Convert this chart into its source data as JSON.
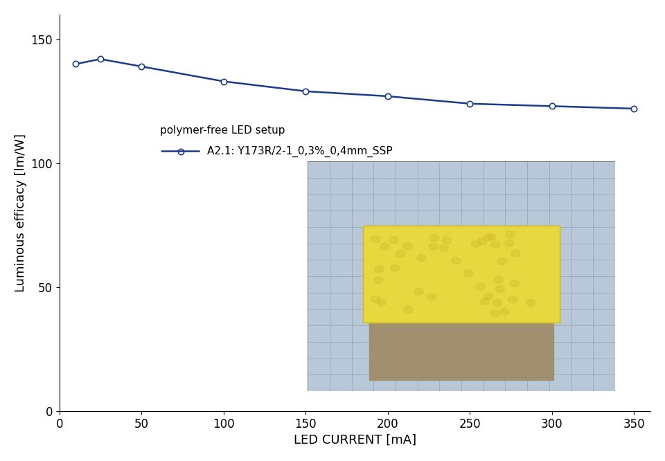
{
  "x": [
    10,
    25,
    50,
    100,
    150,
    200,
    250,
    300,
    350
  ],
  "y": [
    140,
    142,
    139,
    133,
    129,
    127,
    124,
    123,
    122
  ],
  "line_color": "#1a3a8c",
  "marker": "o",
  "marker_facecolor": "white",
  "marker_edgecolor": "#1a3a8c",
  "marker_size": 6,
  "line_width": 1.8,
  "xlabel": "LED CURRENT [mA]",
  "ylabel": "Luminous efficacy [lm/W]",
  "xlim": [
    0,
    360
  ],
  "ylim": [
    0,
    160
  ],
  "xticks": [
    0,
    50,
    100,
    150,
    200,
    250,
    300,
    350
  ],
  "yticks": [
    0,
    50,
    100,
    150
  ],
  "legend_title": "polymer-free LED setup",
  "legend_label": "A2.1: Y173R/2-1_0,3%_0,4mm_SSP",
  "background_color": "#ffffff",
  "spine_color": "#000000",
  "tick_color": "#000000",
  "label_fontsize": 13,
  "tick_fontsize": 12,
  "legend_fontsize": 11
}
